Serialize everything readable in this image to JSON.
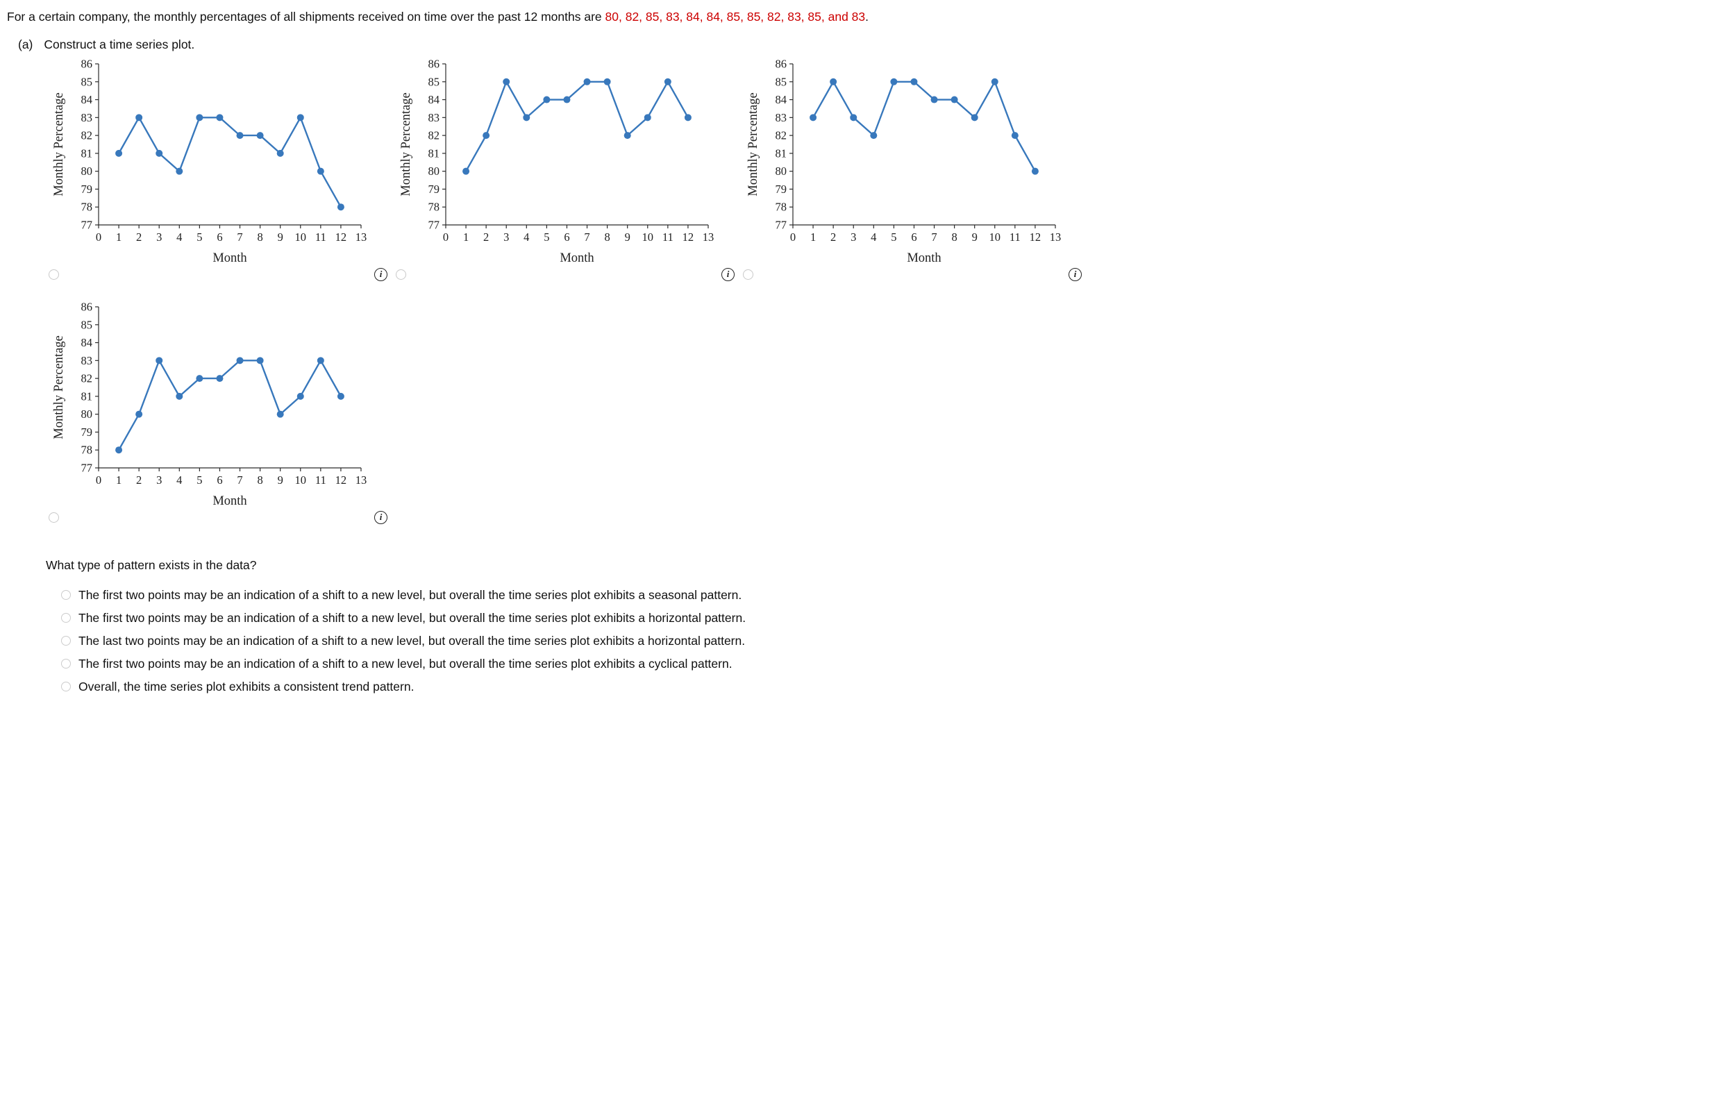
{
  "question": {
    "intro": "For a certain company, the monthly percentages of all shipments received on time over the past 12 months are ",
    "data_values_red": "80, 82, 85, 83, 84, 84, 85, 85, 82, 83, 85, and 83",
    "period": ".",
    "part_label": "(a)",
    "part_text": "Construct a time series plot."
  },
  "icons": {
    "info": "i"
  },
  "colors": {
    "series": "#3878bc",
    "data_text": "#cc0000",
    "axis": "#2b2b2b"
  },
  "chart_axes": {
    "xlabel": "Month",
    "ylabel": "Monthly Percentage",
    "xlim": [
      0,
      13
    ],
    "ylim": [
      77,
      86
    ],
    "xticks": [
      0,
      1,
      2,
      3,
      4,
      5,
      6,
      7,
      8,
      9,
      10,
      11,
      12,
      13
    ],
    "yticks": [
      77,
      78,
      79,
      80,
      81,
      82,
      83,
      84,
      85,
      86
    ],
    "months": [
      1,
      2,
      3,
      4,
      5,
      6,
      7,
      8,
      9,
      10,
      11,
      12
    ],
    "grid": false,
    "legend": false
  },
  "chart_data": [
    {
      "type": "line",
      "values": [
        81,
        83,
        81,
        80,
        83,
        83,
        82,
        82,
        81,
        83,
        80,
        78
      ]
    },
    {
      "type": "line",
      "values": [
        80,
        82,
        85,
        83,
        84,
        84,
        85,
        85,
        82,
        83,
        85,
        83
      ]
    },
    {
      "type": "line",
      "values": [
        83,
        85,
        83,
        82,
        85,
        85,
        84,
        84,
        83,
        85,
        82,
        80
      ]
    },
    {
      "type": "line",
      "values": [
        78,
        80,
        83,
        81,
        82,
        82,
        83,
        83,
        80,
        81,
        83,
        81
      ]
    }
  ],
  "pattern_question": {
    "prompt": "What type of pattern exists in the data?",
    "options": [
      "The first two points may be an indication of a shift to a new level, but overall the time series plot exhibits a seasonal pattern.",
      "The first two points may be an indication of a shift to a new level, but overall the time series plot exhibits a horizontal pattern.",
      "The last two points may be an indication of a shift to a new level, but overall the time series plot exhibits a horizontal pattern.",
      "The first two points may be an indication of a shift to a new level, but overall the time series plot exhibits a cyclical pattern.",
      "Overall, the time series plot exhibits a consistent trend pattern."
    ]
  }
}
